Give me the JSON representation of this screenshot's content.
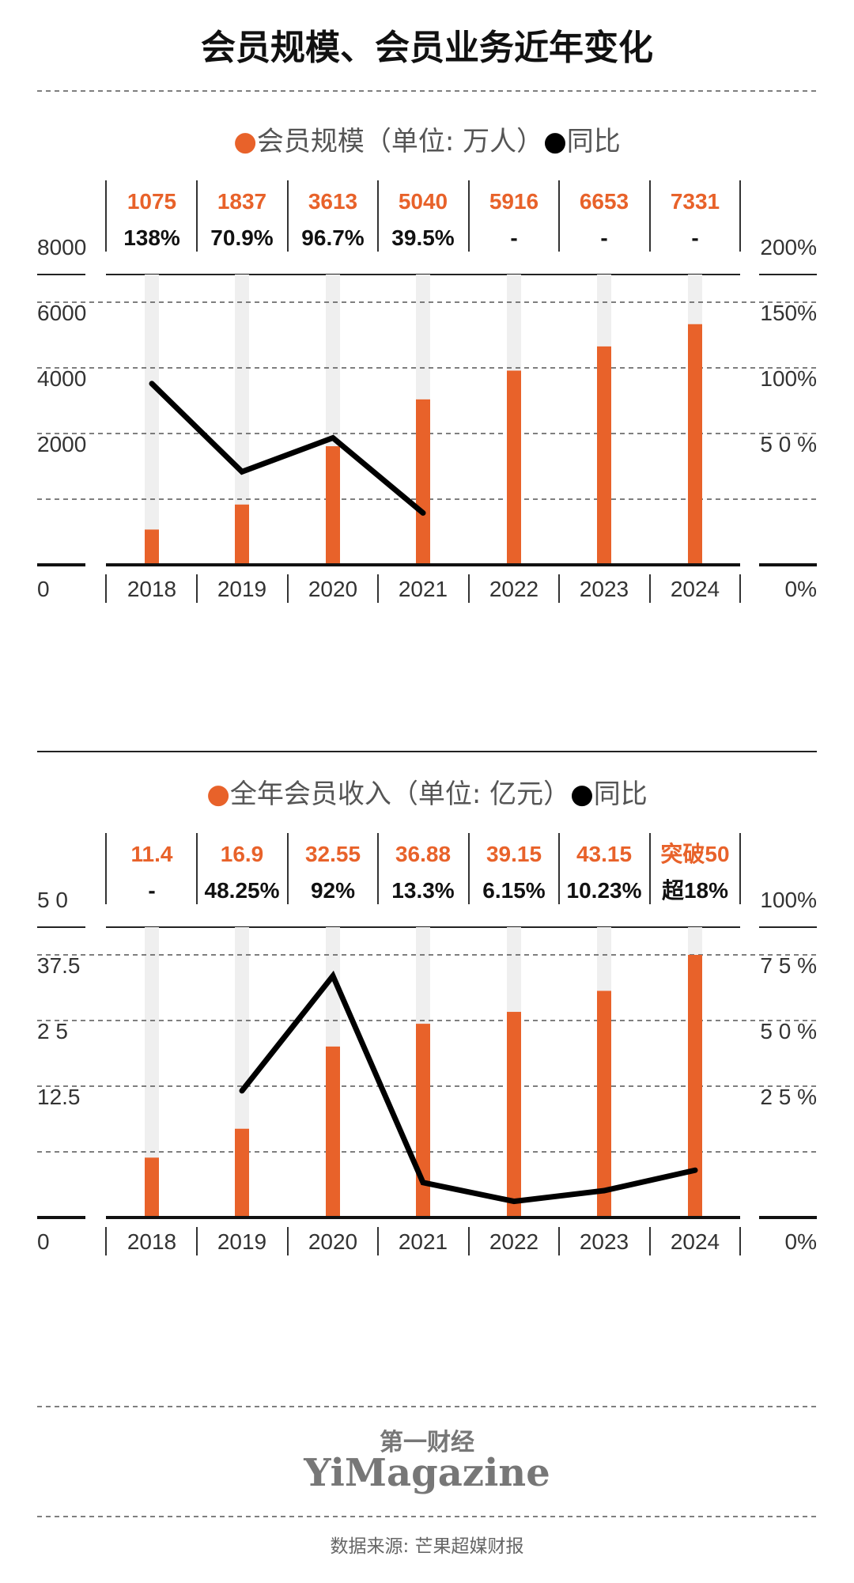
{
  "title": "会员规模、会员业务近年变化",
  "colors": {
    "orange": "#E8622A",
    "track": "#EFEFEF",
    "line": "#000000",
    "dash": "#555555",
    "text": "#222222",
    "source": "#666666"
  },
  "chart_data": [
    {
      "type": "bar",
      "legend_bar": "会员规模（单位: 万人）",
      "legend_line": "同比",
      "categories": [
        "2018",
        "2019",
        "2020",
        "2021",
        "2022",
        "2023",
        "2024"
      ],
      "left_axis": {
        "ticks": [
          "0",
          "2000",
          "4000",
          "6000",
          "8000"
        ],
        "ylim": [
          0,
          8000
        ]
      },
      "right_axis": {
        "ticks": [
          "0%",
          "5 0 %",
          "100%",
          "150%",
          "200%"
        ],
        "ylim": [
          0,
          200
        ]
      },
      "values": [
        1075,
        1837,
        3613,
        5040,
        5916,
        6653,
        7331
      ],
      "value_labels": [
        "1075",
        "1837",
        "3613",
        "5040",
        "5916",
        "6653",
        "7331"
      ],
      "yoy": [
        138,
        70.9,
        96.7,
        39.5,
        null,
        null,
        null
      ],
      "yoy_labels": [
        "138%",
        "70.9%",
        "96.7%",
        "39.5%",
        "-",
        "-",
        "-"
      ]
    },
    {
      "type": "bar",
      "legend_bar": "全年会员收入（单位: 亿元）",
      "legend_line": "同比",
      "categories": [
        "2018",
        "2019",
        "2020",
        "2021",
        "2022",
        "2023",
        "2024"
      ],
      "left_axis": {
        "ticks": [
          "0",
          "12.5",
          "2 5",
          "37.5",
          "5 0"
        ],
        "ylim": [
          0,
          50
        ]
      },
      "right_axis": {
        "ticks": [
          "0%",
          "2 5 %",
          "5 0 %",
          "7 5 %",
          "100%"
        ],
        "ylim": [
          0,
          100
        ]
      },
      "values": [
        11.4,
        16.9,
        32.55,
        36.88,
        39.15,
        43.15,
        50
      ],
      "value_labels": [
        "11.4",
        "16.9",
        "32.55",
        "36.88",
        "39.15",
        "43.15",
        "突破50"
      ],
      "yoy": [
        null,
        48.25,
        92,
        13.3,
        6.15,
        10.23,
        18
      ],
      "yoy_labels": [
        "-",
        "48.25%",
        "92%",
        "13.3%",
        "6.15%",
        "10.23%",
        "超18%"
      ]
    }
  ],
  "brand": {
    "cn": "第一财经",
    "en": "YiMagazine"
  },
  "source": "数据来源: 芒果超媒财报"
}
